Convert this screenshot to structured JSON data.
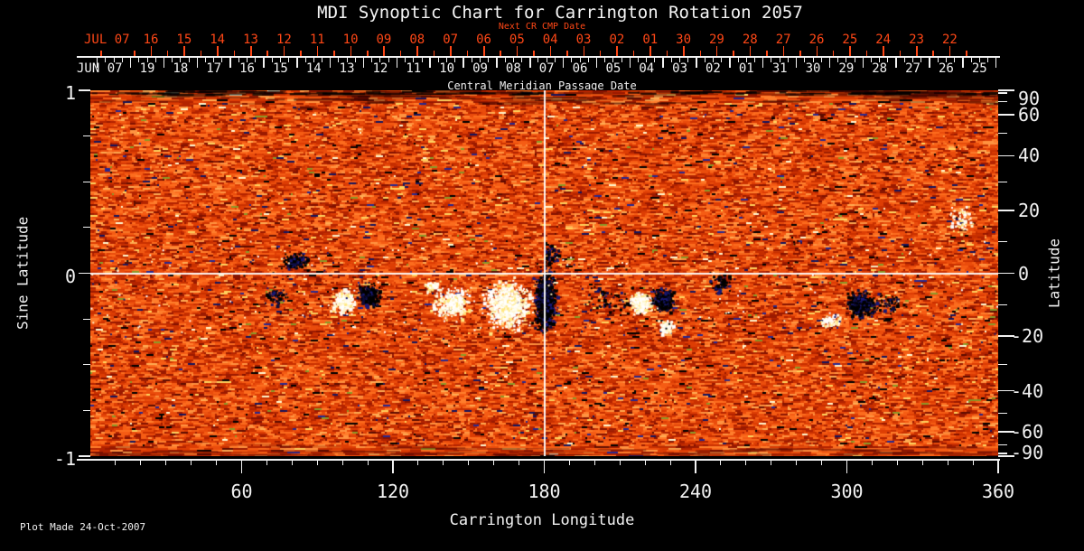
{
  "window": {
    "background": "#000000"
  },
  "chart_data": {
    "type": "heatmap",
    "title": "MDI Synoptic Chart for Carrington Rotation 2057",
    "footer": "Plot Made 24-Oct-2007",
    "x_axis": {
      "label": "Carrington Longitude",
      "range": [
        0,
        360
      ],
      "major_ticks": [
        60,
        120,
        180,
        240,
        300,
        360
      ],
      "minor_tick_step": 10
    },
    "y_axis_left": {
      "label": "Sine Latitude",
      "range": [
        -1,
        1
      ],
      "major_ticks": [
        "1",
        "0",
        "-1"
      ],
      "major_tick_values": [
        1,
        0,
        -1
      ],
      "minor_tick_values": [
        0.75,
        0.5,
        0.25,
        -0.25,
        -0.5,
        -0.75
      ]
    },
    "y_axis_right": {
      "label": "Latitude",
      "scale": "sine-of-latitude",
      "major_ticks": [
        90,
        60,
        40,
        20,
        0,
        -20,
        -40,
        -60,
        -90
      ],
      "minor_ticks": [
        80,
        70,
        50,
        30,
        10,
        -10,
        -30,
        -50,
        -70,
        -80
      ]
    },
    "top_axis_next_cr": {
      "label": "Next CR CMP Date",
      "month_label": "JUL 07",
      "day_labels": [
        "16",
        "15",
        "14",
        "13",
        "12",
        "11",
        "10",
        "09",
        "08",
        "07",
        "06",
        "05",
        "04",
        "03",
        "02",
        "01",
        "30",
        "29",
        "28",
        "27",
        "26",
        "25",
        "24",
        "23",
        "22"
      ],
      "color": "#ff4716"
    },
    "top_axis_cmp": {
      "label": "Central Meridian Passage Date",
      "month_label": "JUN 07",
      "day_labels": [
        "19",
        "18",
        "17",
        "16",
        "15",
        "14",
        "13",
        "12",
        "11",
        "10",
        "09",
        "08",
        "07",
        "06",
        "05",
        "04",
        "03",
        "02",
        "01",
        "31",
        "30",
        "29",
        "28",
        "27",
        "26",
        "25"
      ]
    },
    "crosshair": {
      "longitude": 180,
      "sine_latitude": 0
    },
    "colormap": {
      "background_field": "orange-red speckle noise",
      "positive_polarity": "white / pale yellow",
      "negative_polarity": "black / dark blue",
      "accent_red": "#ff4716",
      "axis_white": "#f2f2f2"
    },
    "active_regions": [
      {
        "lon": 81,
        "sine_lat": 0.07,
        "polarity": "negative",
        "extent_lon": 9,
        "extent_slat": 0.1,
        "density": "medium"
      },
      {
        "lon": 73,
        "sine_lat": -0.13,
        "polarity": "negative",
        "extent_lon": 10,
        "extent_slat": 0.1,
        "density": "sparse"
      },
      {
        "lon": 100,
        "sine_lat": -0.15,
        "polarity": "positive",
        "extent_lon": 8,
        "extent_slat": 0.12,
        "density": "dense"
      },
      {
        "lon": 110,
        "sine_lat": -0.12,
        "polarity": "negative",
        "extent_lon": 8,
        "extent_slat": 0.12,
        "density": "dense"
      },
      {
        "lon": 143,
        "sine_lat": -0.16,
        "polarity": "positive",
        "extent_lon": 14,
        "extent_slat": 0.16,
        "density": "dense"
      },
      {
        "lon": 135,
        "sine_lat": -0.07,
        "polarity": "positive",
        "extent_lon": 6,
        "extent_slat": 0.06,
        "density": "sparse"
      },
      {
        "lon": 165,
        "sine_lat": -0.17,
        "polarity": "positive",
        "extent_lon": 16,
        "extent_slat": 0.24,
        "density": "very-dense"
      },
      {
        "lon": 180,
        "sine_lat": -0.14,
        "polarity": "negative",
        "extent_lon": 8,
        "extent_slat": 0.3,
        "density": "very-dense"
      },
      {
        "lon": 182,
        "sine_lat": 0.1,
        "polarity": "negative",
        "extent_lon": 6,
        "extent_slat": 0.12,
        "density": "sparse"
      },
      {
        "lon": 205,
        "sine_lat": -0.15,
        "polarity": "negative",
        "extent_lon": 22,
        "extent_slat": 0.16,
        "density": "sparse"
      },
      {
        "lon": 218,
        "sine_lat": -0.16,
        "polarity": "positive",
        "extent_lon": 8,
        "extent_slat": 0.1,
        "density": "dense"
      },
      {
        "lon": 227,
        "sine_lat": -0.14,
        "polarity": "negative",
        "extent_lon": 8,
        "extent_slat": 0.12,
        "density": "dense"
      },
      {
        "lon": 228,
        "sine_lat": -0.29,
        "polarity": "positive",
        "extent_lon": 5,
        "extent_slat": 0.07,
        "density": "medium"
      },
      {
        "lon": 250,
        "sine_lat": -0.05,
        "polarity": "negative",
        "extent_lon": 9,
        "extent_slat": 0.1,
        "density": "sparse"
      },
      {
        "lon": 305,
        "sine_lat": -0.17,
        "polarity": "negative",
        "extent_lon": 10,
        "extent_slat": 0.14,
        "density": "dense"
      },
      {
        "lon": 293,
        "sine_lat": -0.26,
        "polarity": "positive",
        "extent_lon": 8,
        "extent_slat": 0.08,
        "density": "sparse"
      },
      {
        "lon": 315,
        "sine_lat": -0.16,
        "polarity": "negative",
        "extent_lon": 14,
        "extent_slat": 0.12,
        "density": "sparse"
      },
      {
        "lon": 345,
        "sine_lat": 0.3,
        "polarity": "positive",
        "extent_lon": 10,
        "extent_slat": 0.15,
        "density": "sparse"
      }
    ]
  }
}
